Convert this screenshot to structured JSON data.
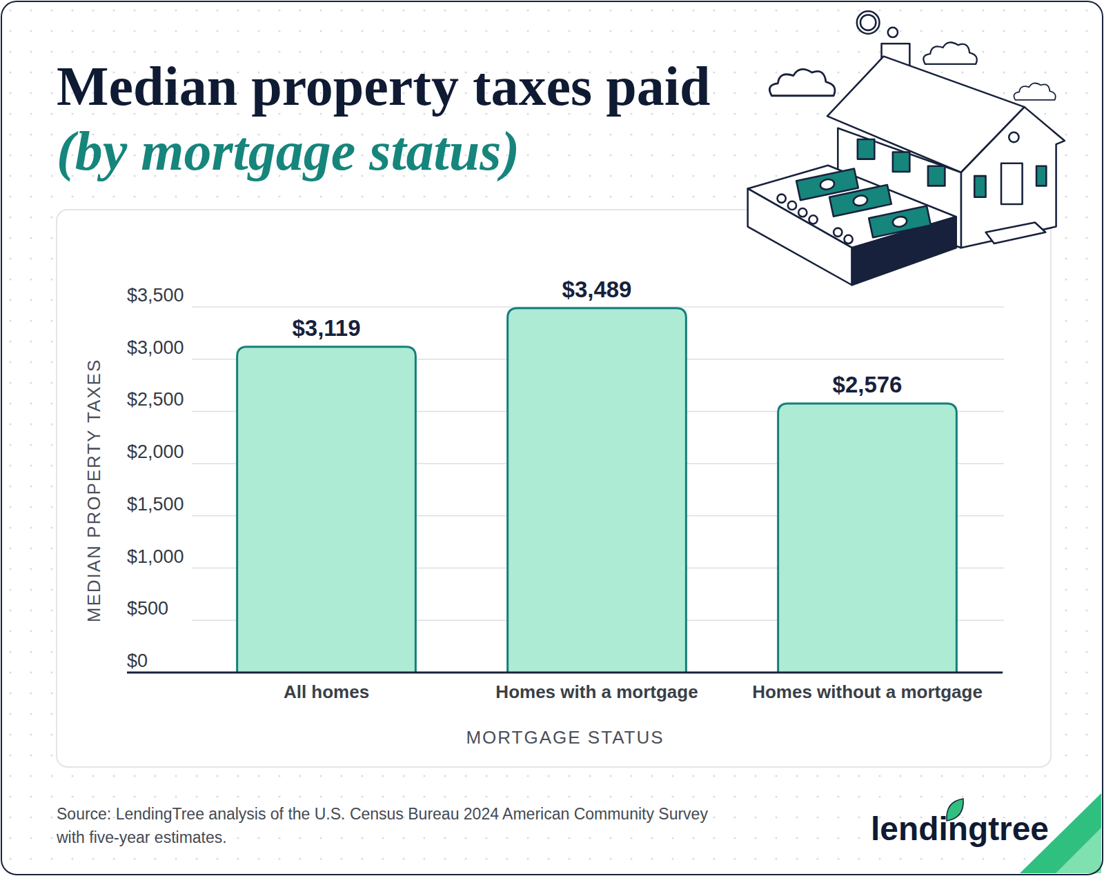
{
  "chart_data": {
    "type": "bar",
    "title": "Median property taxes paid",
    "subtitle": "(by mortgage status)",
    "x_label": "MORTGAGE STATUS",
    "y_label": "MEDIAN PROPERTY TAXES",
    "categories": [
      "All homes",
      "Homes with a mortgage",
      "Homes without a mortgage"
    ],
    "values": [
      3119,
      3489,
      2576
    ],
    "value_labels": [
      "$3,119",
      "$3,489",
      "$2,576"
    ],
    "color": "#aeebd4",
    "ylim": [
      0,
      3500
    ],
    "yticks": [
      {
        "value": 0,
        "label": "$0"
      },
      {
        "value": 500,
        "label": "$500"
      },
      {
        "value": 1000,
        "label": "$1,000"
      },
      {
        "value": 1500,
        "label": "$1,500"
      },
      {
        "value": 2000,
        "label": "$2,000"
      },
      {
        "value": 2500,
        "label": "$2,500"
      },
      {
        "value": 3000,
        "label": "$3,000"
      },
      {
        "value": 3500,
        "label": "$3,500"
      }
    ],
    "grid": true,
    "data_labels": true,
    "source": "Source: LendingTree analysis of the U.S. Census Bureau 2024 American Community Survey with five-year estimates.",
    "brand": "lendingtree"
  }
}
